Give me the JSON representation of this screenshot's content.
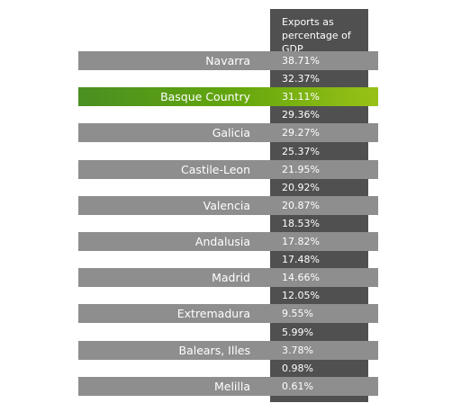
{
  "chart_data": {
    "type": "table",
    "header": "Exports as percentage of GDP",
    "header_lines": [
      "Exports as",
      "percentage of GDP"
    ],
    "highlight_color": "#62a50e",
    "rows": [
      {
        "label": "Navarra",
        "value": "38.71%",
        "highlight": false
      },
      {
        "label": "",
        "value": "32.37%",
        "highlight": false
      },
      {
        "label": "Basque Country",
        "value": "31.11%",
        "highlight": true
      },
      {
        "label": "",
        "value": "29.36%",
        "highlight": false
      },
      {
        "label": "Galicia",
        "value": "29.27%",
        "highlight": false
      },
      {
        "label": "",
        "value": "25.37%",
        "highlight": false
      },
      {
        "label": "Castile-Leon",
        "value": "21.95%",
        "highlight": false
      },
      {
        "label": "",
        "value": "20.92%",
        "highlight": false
      },
      {
        "label": "Valencia",
        "value": "20.87%",
        "highlight": false
      },
      {
        "label": "",
        "value": "18.53%",
        "highlight": false
      },
      {
        "label": "Andalusia",
        "value": "17.82%",
        "highlight": false
      },
      {
        "label": "",
        "value": "17.48%",
        "highlight": false
      },
      {
        "label": "Madrid",
        "value": "14.66%",
        "highlight": false
      },
      {
        "label": "",
        "value": "12.05%",
        "highlight": false
      },
      {
        "label": "Extremadura",
        "value": "9.55%",
        "highlight": false
      },
      {
        "label": "",
        "value": "5.99%",
        "highlight": false
      },
      {
        "label": "Balears, Illes",
        "value": "3.78%",
        "highlight": false
      },
      {
        "label": "",
        "value": "0.98%",
        "highlight": false
      },
      {
        "label": "Melilla",
        "value": "0.61%",
        "highlight": false
      }
    ]
  }
}
